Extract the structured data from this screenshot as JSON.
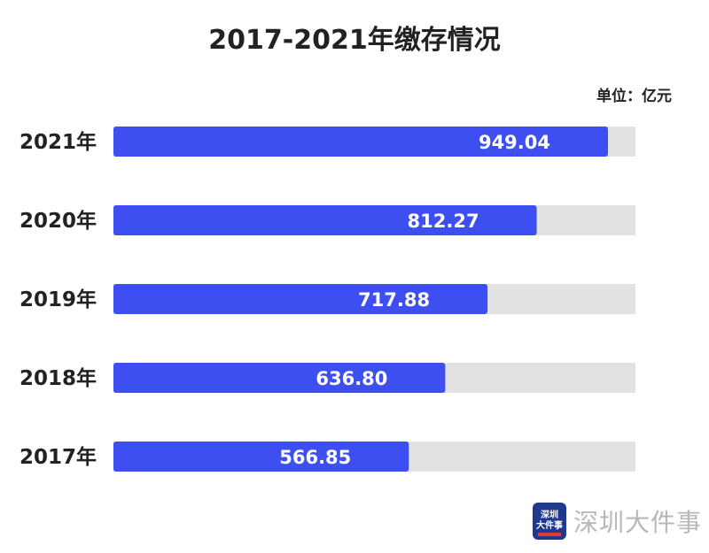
{
  "header": {
    "title": "2017-2021年缴存情况",
    "unit": "单位：亿元"
  },
  "chart_data": {
    "type": "bar",
    "orientation": "horizontal",
    "title": "2017-2021年缴存情况",
    "unit": "单位：亿元",
    "categories": [
      "2021年",
      "2020年",
      "2019年",
      "2018年",
      "2017年"
    ],
    "values": [
      949.04,
      812.27,
      717.88,
      636.8,
      566.85
    ],
    "value_labels": [
      "949.04",
      "812.27",
      "717.88",
      "636.80",
      "566.85"
    ],
    "xlim": [
      0,
      1000
    ],
    "grid": false,
    "legend": "none",
    "bar_color": "#3d4ff0",
    "track_color": "#e2e2e2"
  },
  "watermark": {
    "logo_line1": "深圳",
    "logo_line2": "大件事",
    "text": "深圳大件事",
    "icon": "logo-icon"
  }
}
